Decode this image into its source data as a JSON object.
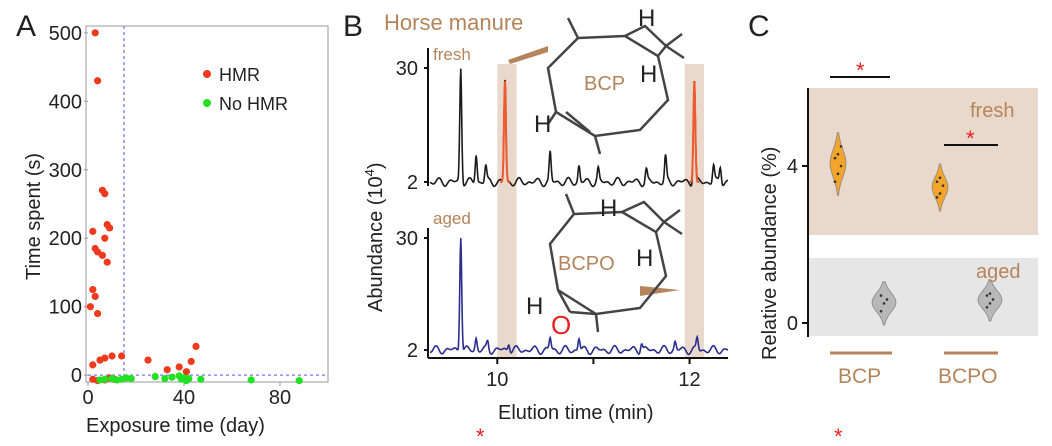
{
  "panels": {
    "A": {
      "letter": "A"
    },
    "B": {
      "letter": "B"
    },
    "C": {
      "letter": "C"
    }
  },
  "chart_data": [
    {
      "id": "A",
      "type": "scatter",
      "xlabel": "Exposure time (day)",
      "ylabel": "Time spent (s)",
      "xlim": [
        0,
        100
      ],
      "ylim": [
        -10,
        510
      ],
      "xticks": [
        0,
        40,
        80
      ],
      "yticks": [
        0,
        100,
        200,
        300,
        400,
        500
      ],
      "threshold_lines": {
        "x": 15,
        "y": 0
      },
      "colors": {
        "HMR": "#f03a1e",
        "No HMR": "#22e022",
        "threshold": "#8c8cf0"
      },
      "series": [
        {
          "name": "HMR",
          "points": [
            [
              3,
              500
            ],
            [
              4,
              430
            ],
            [
              6,
              270
            ],
            [
              7,
              265
            ],
            [
              8,
              220
            ],
            [
              9,
              215
            ],
            [
              7,
              200
            ],
            [
              2,
              210
            ],
            [
              3,
              185
            ],
            [
              4,
              180
            ],
            [
              6,
              175
            ],
            [
              8,
              165
            ],
            [
              2,
              125
            ],
            [
              3,
              115
            ],
            [
              1,
              100
            ],
            [
              4,
              90
            ],
            [
              2,
              15
            ],
            [
              5,
              22
            ],
            [
              7,
              25
            ],
            [
              10,
              28
            ],
            [
              14,
              28
            ],
            [
              25,
              22
            ],
            [
              33,
              8
            ],
            [
              38,
              12
            ],
            [
              41,
              5
            ],
            [
              43,
              20
            ],
            [
              45,
              42
            ],
            [
              2,
              -6
            ],
            [
              4,
              -8
            ],
            [
              7,
              -7
            ],
            [
              9,
              -4
            ],
            [
              11,
              -6
            ]
          ]
        },
        {
          "name": "No HMR",
          "points": [
            [
              5,
              -7
            ],
            [
              7,
              -6
            ],
            [
              10,
              -5
            ],
            [
              12,
              -7
            ],
            [
              14,
              -6
            ],
            [
              16,
              -4
            ],
            [
              18,
              -5
            ],
            [
              28,
              -2
            ],
            [
              32,
              -5
            ],
            [
              35,
              -3
            ],
            [
              38,
              -1
            ],
            [
              39,
              -6
            ],
            [
              40,
              -4
            ],
            [
              41,
              -8
            ],
            [
              42,
              -5
            ],
            [
              47,
              -6
            ],
            [
              68,
              -7
            ],
            [
              88,
              -8
            ]
          ]
        }
      ]
    },
    {
      "id": "B",
      "type": "line",
      "title": "Horse manure",
      "xlabel": "Elution time (min)",
      "ylabel": "Abundance (10",
      "ylabel_sup": "4",
      "ylabel_close": ")",
      "xlim": [
        9.3,
        12.4
      ],
      "xticks": [
        10,
        11,
        12
      ],
      "yticks": [
        2,
        30
      ],
      "highlight_windows": [
        [
          10.0,
          10.2
        ],
        [
          11.95,
          12.15
        ]
      ],
      "colors": {
        "fresh": "#1a1a1a",
        "aged": "#2a2d8c",
        "highlight": "#e9d9cc",
        "peak": "#f05a30",
        "label": "#b5845a"
      },
      "series": [
        {
          "name": "fresh",
          "label": "fresh",
          "molecule": "BCP",
          "peaks": [
            [
              9.62,
              30
            ],
            [
              9.78,
              9
            ],
            [
              9.88,
              6
            ],
            [
              10.08,
              27
            ],
            [
              10.55,
              9
            ],
            [
              10.85,
              6
            ],
            [
              11.05,
              5
            ],
            [
              11.55,
              5
            ],
            [
              11.75,
              8
            ],
            [
              12.05,
              27
            ],
            [
              12.25,
              6
            ],
            [
              12.32,
              6
            ]
          ]
        },
        {
          "name": "aged",
          "label": "aged",
          "molecule": "BCPO",
          "peaks": [
            [
              9.62,
              31
            ],
            [
              9.78,
              5
            ],
            [
              9.9,
              4
            ],
            [
              10.12,
              4
            ],
            [
              10.55,
              5
            ],
            [
              10.85,
              5
            ],
            [
              11.5,
              4
            ],
            [
              11.85,
              4
            ],
            [
              12.08,
              5
            ]
          ]
        }
      ],
      "molecules": {
        "BCP": {
          "name": "BCP",
          "H1": "H",
          "H2": "H",
          "H3": "H"
        },
        "BCPO": {
          "name": "BCPO",
          "H1": "H",
          "H2": "H",
          "H3": "H",
          "O": "O"
        }
      }
    },
    {
      "id": "C",
      "type": "violin",
      "ylabel": "Relative abundance (%)",
      "categories": [
        "BCP",
        "BCPO"
      ],
      "yticks": [
        0,
        4
      ],
      "ylim": [
        -0.5,
        6
      ],
      "groups": [
        {
          "name": "fresh",
          "label": "fresh",
          "color": "#f2a52a",
          "band": "#e9d9cc",
          "values": {
            "BCP": [
              3.6,
              3.8,
              4.0,
              4.2,
              4.3,
              4.5
            ],
            "BCPO": [
              3.2,
              3.3,
              3.5,
              3.6,
              3.7
            ]
          }
        },
        {
          "name": "aged",
          "label": "aged",
          "color": "#b8b8b8",
          "band": "#e6e6e6",
          "values": {
            "BCP": [
              0.3,
              0.5,
              0.6,
              0.7
            ],
            "BCPO": [
              0.4,
              0.5,
              0.6,
              0.7,
              0.75
            ]
          }
        }
      ],
      "significance": [
        {
          "between": "fresh BCP vs aged BCP",
          "mark": "*"
        },
        {
          "between": "fresh BCPO vs aged BCPO",
          "mark": "*"
        }
      ],
      "footer_marks": [
        "*",
        "*"
      ]
    }
  ]
}
